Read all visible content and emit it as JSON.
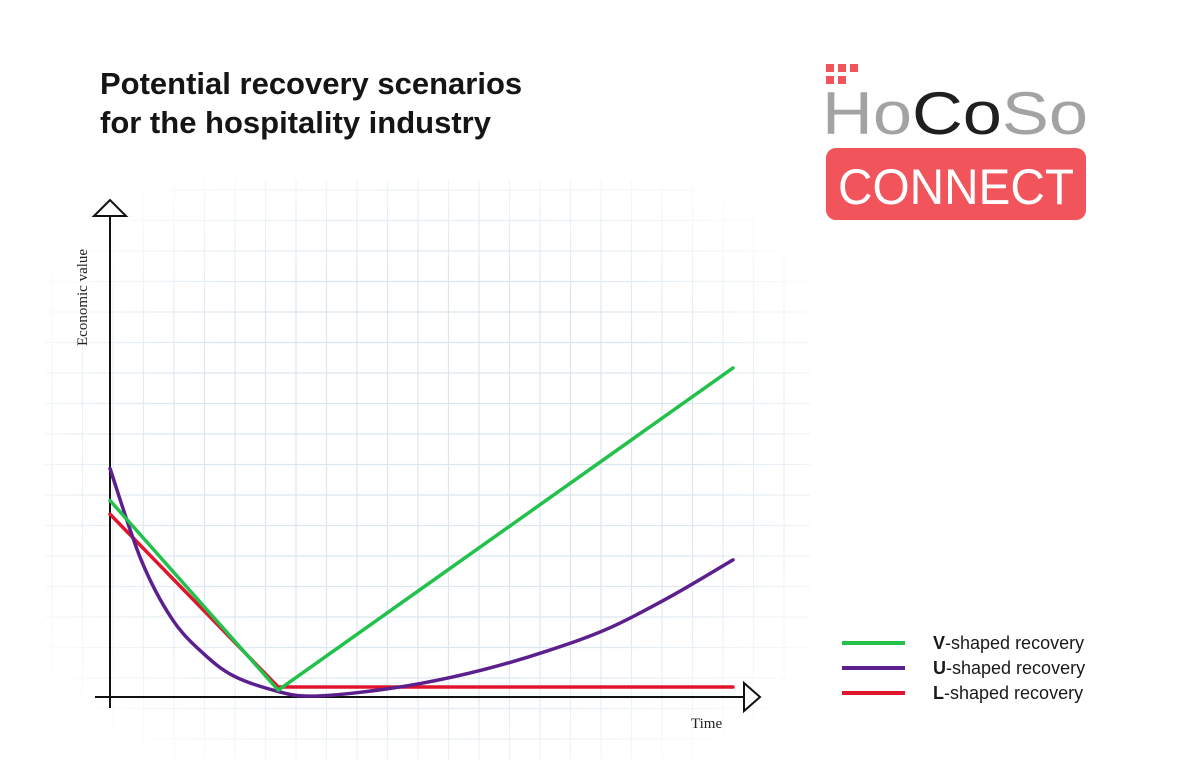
{
  "title_lines": [
    "Potential recovery scenarios",
    "for the hospitality industry"
  ],
  "logo": {
    "top_text": "HoCoSo",
    "bottom_text": "CONNECT",
    "colors": {
      "gray": "#a3a3a3",
      "dark": "#1f1f1f",
      "red": "#f2545b"
    }
  },
  "chart_data": {
    "type": "line",
    "xlabel": "Time",
    "ylabel": "Economic value",
    "xlim": [
      0,
      10
    ],
    "ylim": [
      0,
      10
    ],
    "grid": true,
    "legend_position": "bottom-right",
    "series": [
      {
        "name": "V-shaped recovery",
        "legend_bold": "V",
        "legend_rest": "-shaped recovery",
        "color": "#21c14b",
        "points": [
          [
            0,
            4.3
          ],
          [
            2.7,
            0.15
          ],
          [
            10,
            7.2
          ]
        ]
      },
      {
        "name": "U-shaped recovery",
        "legend_bold": "U",
        "legend_rest": "-shaped recovery",
        "color": "#5b1f8e",
        "points": [
          [
            0,
            5.0
          ],
          [
            0.5,
            3.0
          ],
          [
            1.0,
            1.7
          ],
          [
            1.5,
            0.95
          ],
          [
            2.0,
            0.45
          ],
          [
            2.7,
            0.12
          ],
          [
            3.2,
            0.02
          ],
          [
            4.0,
            0.1
          ],
          [
            5.0,
            0.3
          ],
          [
            6.0,
            0.6
          ],
          [
            7.0,
            1.0
          ],
          [
            8.0,
            1.5
          ],
          [
            9.0,
            2.2
          ],
          [
            10,
            3.0
          ]
        ]
      },
      {
        "name": "L-shaped recovery",
        "legend_bold": "L",
        "legend_rest": "-shaped recovery",
        "color": "#e0152b",
        "points": [
          [
            0,
            4.0
          ],
          [
            2.7,
            0.22
          ],
          [
            10,
            0.22
          ]
        ]
      }
    ]
  }
}
